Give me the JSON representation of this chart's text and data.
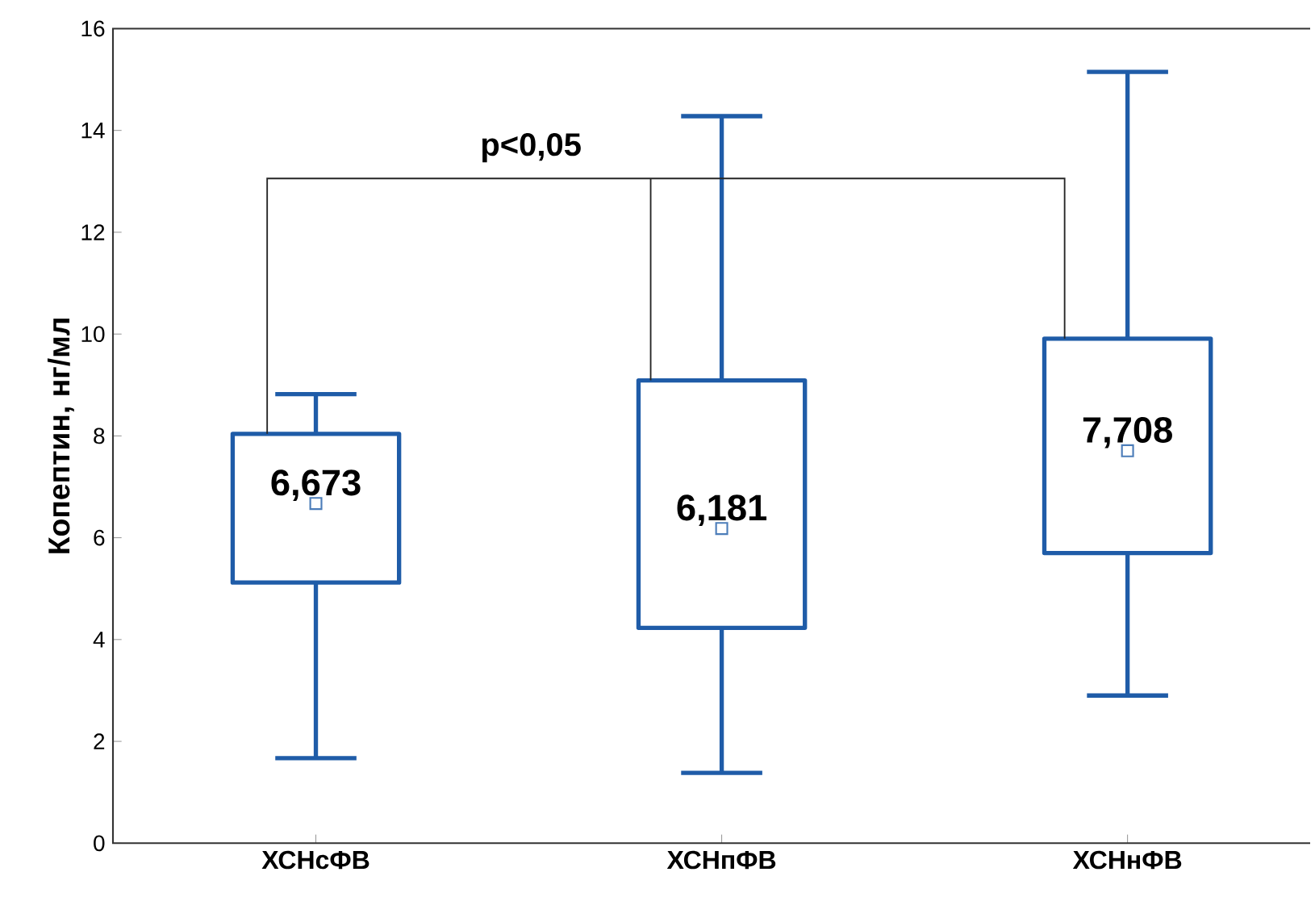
{
  "chart_data": {
    "type": "box",
    "ylabel": "Копептин, нг/мл",
    "categories": [
      "ХСНсФВ",
      "ХСНпФВ",
      "ХСНнФВ"
    ],
    "ylim": [
      0,
      16
    ],
    "yticks": [
      0,
      2,
      4,
      6,
      8,
      10,
      12,
      14,
      16
    ],
    "color": "#1f5ca8",
    "boxes": [
      {
        "low": 1.67,
        "q1": 5.12,
        "q3": 8.04,
        "high": 8.82,
        "mean": 6.673
      },
      {
        "low": 1.38,
        "q1": 4.23,
        "q3": 9.09,
        "high": 14.28,
        "mean": 6.181
      },
      {
        "low": 2.9,
        "q1": 5.7,
        "q3": 9.91,
        "high": 15.15,
        "mean": 7.708
      }
    ],
    "value_labels": [
      "6,673",
      "6,181",
      "7,708"
    ],
    "annotations": [
      "p<0,05"
    ]
  }
}
